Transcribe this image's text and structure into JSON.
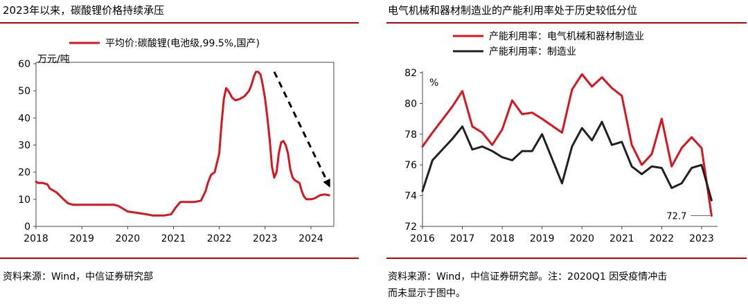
{
  "left": {
    "title": "2023年以来，碳酸锂价格持续承压",
    "source": "资料来源：Wind，中信证券研究部"
  },
  "right": {
    "title": "电气机械和器材制造业的产能利用率处于历史较低分位",
    "source_line1": "资料来源：Wind，中信证券研究部。注：2020Q1 因受疫情冲击",
    "source_line2": "而未显示于图中。"
  },
  "colors": {
    "red": "#d9141e",
    "black": "#231f20",
    "rule": "#c00000"
  },
  "chart_data": [
    {
      "type": "line",
      "ylabel": "万元/吨",
      "ylim": [
        0,
        60
      ],
      "yticks": [
        0,
        10,
        20,
        30,
        40,
        50,
        60
      ],
      "xlim": [
        2018,
        2024.5
      ],
      "xticks": [
        "2018",
        "2019",
        "2020",
        "2021",
        "2022",
        "2023",
        "2024"
      ],
      "annotation": "dashed downward arrow from 2023.2 to 2024.4",
      "series": [
        {
          "name": "平均价:碳酸锂(电池级,99.5%,国产)",
          "color": "#d9141e",
          "x": [
            2018.0,
            2018.05,
            2018.15,
            2018.25,
            2018.3,
            2018.45,
            2018.6,
            2018.7,
            2018.8,
            2019.0,
            2019.2,
            2019.4,
            2019.55,
            2019.7,
            2019.8,
            2019.9,
            2020.0,
            2020.2,
            2020.4,
            2020.55,
            2020.8,
            2020.95,
            2021.05,
            2021.15,
            2021.3,
            2021.45,
            2021.6,
            2021.7,
            2021.75,
            2021.82,
            2021.9,
            2022.0,
            2022.05,
            2022.1,
            2022.15,
            2022.2,
            2022.28,
            2022.35,
            2022.45,
            2022.55,
            2022.65,
            2022.7,
            2022.75,
            2022.8,
            2022.85,
            2022.9,
            2022.95,
            2023.0,
            2023.05,
            2023.1,
            2023.15,
            2023.2,
            2023.25,
            2023.3,
            2023.35,
            2023.4,
            2023.45,
            2023.5,
            2023.55,
            2023.6,
            2023.65,
            2023.7,
            2023.75,
            2023.8,
            2023.85,
            2023.9,
            2023.95,
            2024.0,
            2024.05,
            2024.1,
            2024.15,
            2024.2,
            2024.3,
            2024.4
          ],
          "values": [
            16.5,
            16.0,
            16.0,
            15.5,
            14.0,
            12.5,
            10.0,
            8.5,
            8.0,
            8.0,
            8.0,
            8.0,
            8.0,
            8.0,
            7.5,
            6.5,
            5.5,
            5.0,
            4.5,
            4.0,
            4.0,
            4.5,
            7.0,
            9.0,
            9.0,
            9.0,
            9.5,
            13.0,
            16.0,
            19.0,
            20.0,
            27.0,
            38.0,
            47.0,
            51.0,
            50.0,
            47.5,
            46.5,
            47.0,
            48.0,
            50.0,
            52.0,
            55.0,
            57.0,
            57.0,
            56.0,
            52.0,
            47.0,
            40.0,
            32.0,
            22.0,
            18.0,
            20.0,
            27.0,
            31.0,
            31.5,
            30.0,
            27.0,
            21.0,
            18.0,
            17.0,
            16.5,
            16.0,
            13.0,
            11.0,
            10.0,
            10.0,
            10.0,
            10.2,
            10.5,
            11.0,
            11.5,
            11.8,
            11.5
          ]
        }
      ]
    },
    {
      "type": "line",
      "ylabel": "%",
      "ylim": [
        72,
        82
      ],
      "yticks": [
        72,
        74,
        76,
        78,
        80,
        82
      ],
      "xlim": [
        2016,
        2023.4
      ],
      "xticks": [
        "2016",
        "2017",
        "2018",
        "2019",
        "2020",
        "2021",
        "2022",
        "2023"
      ],
      "annotation": "72.7",
      "series": [
        {
          "name": "产能利用率：电气机械和器材制造业",
          "color": "#d9141e",
          "x": [
            2016.0,
            2016.25,
            2016.75,
            2017.0,
            2017.25,
            2017.5,
            2017.75,
            2018.0,
            2018.25,
            2018.5,
            2018.75,
            2019.0,
            2019.5,
            2019.75,
            2020.0,
            2020.25,
            2020.5,
            2020.75,
            2021.0,
            2021.25,
            2021.5,
            2021.75,
            2022.0,
            2022.25,
            2022.5,
            2022.75,
            2023.0,
            2023.25
          ],
          "values": [
            77.2,
            78.1,
            79.8,
            80.8,
            78.5,
            78.1,
            77.3,
            78.3,
            80.2,
            79.3,
            79.4,
            79.0,
            78.1,
            80.9,
            81.9,
            81.1,
            81.7,
            81.0,
            80.5,
            77.3,
            76.0,
            76.7,
            79.0,
            75.9,
            77.1,
            77.8,
            77.1,
            72.7
          ]
        },
        {
          "name": "产能利用率：制造业",
          "color": "#231f20",
          "x": [
            2016.0,
            2016.25,
            2016.75,
            2017.0,
            2017.25,
            2017.5,
            2017.75,
            2018.0,
            2018.25,
            2018.5,
            2018.75,
            2019.0,
            2019.5,
            2019.75,
            2020.0,
            2020.25,
            2020.5,
            2020.75,
            2021.0,
            2021.25,
            2021.5,
            2021.75,
            2022.0,
            2022.25,
            2022.5,
            2022.75,
            2023.0,
            2023.25
          ],
          "values": [
            74.3,
            76.3,
            77.7,
            78.5,
            77.0,
            77.2,
            76.9,
            76.5,
            76.3,
            76.9,
            76.9,
            78.0,
            74.8,
            77.2,
            78.4,
            77.6,
            78.8,
            77.3,
            77.5,
            75.9,
            75.4,
            75.9,
            75.8,
            74.5,
            74.8,
            75.8,
            76.0,
            73.7
          ]
        }
      ]
    }
  ]
}
